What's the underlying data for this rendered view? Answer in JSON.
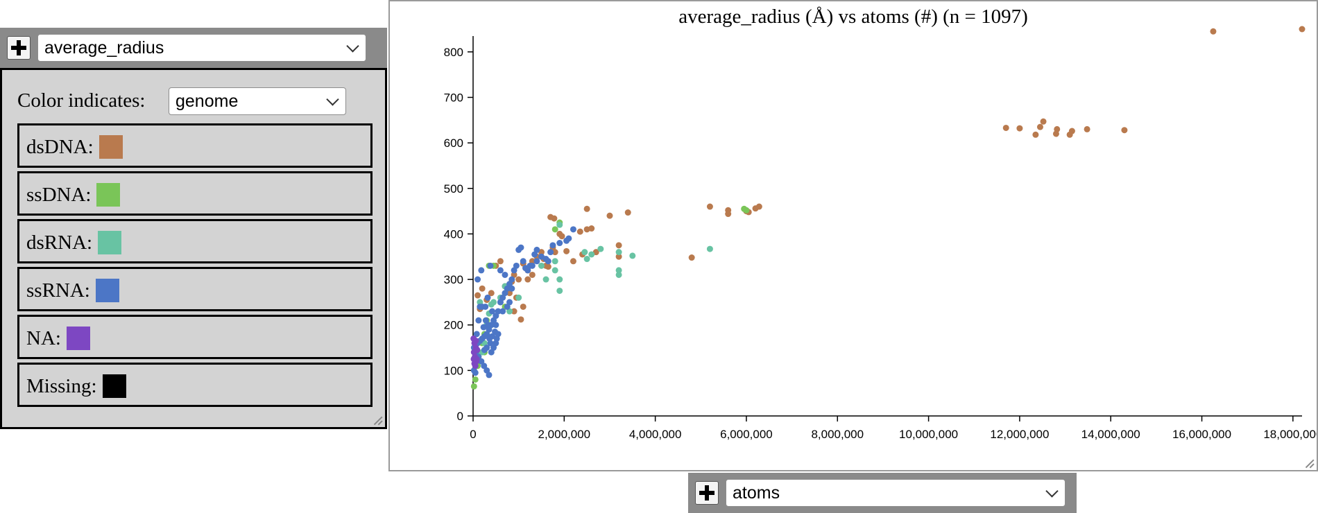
{
  "y_selector": {
    "value": "average_radius"
  },
  "x_selector": {
    "value": "atoms"
  },
  "legend": {
    "title": "Color indicates:",
    "select_value": "genome",
    "items": [
      {
        "label": "dsDNA:",
        "color": "#b97a4e"
      },
      {
        "label": "ssDNA:",
        "color": "#7ac558"
      },
      {
        "label": "dsRNA:",
        "color": "#68c3a3"
      },
      {
        "label": "ssRNA:",
        "color": "#4c76c6"
      },
      {
        "label": "NA:",
        "color": "#7d47c2"
      },
      {
        "label": "Missing:",
        "color": "#000000"
      }
    ]
  },
  "chart_data": {
    "type": "scatter",
    "title": "average_radius (Å) vs atoms (#) (n = 1097)",
    "xlabel": "",
    "ylabel": "",
    "xlim": [
      0,
      18200000
    ],
    "ylim": [
      0,
      850
    ],
    "x_ticks": [
      "0",
      "2,000,000",
      "4,000,000",
      "6,000,000",
      "8,000,000",
      "10,000,000",
      "12,000,000",
      "14,000,000",
      "16,000,000",
      "18,000,000"
    ],
    "y_ticks": [
      "0",
      "100",
      "200",
      "300",
      "400",
      "500",
      "600",
      "700",
      "800"
    ],
    "series": [
      {
        "name": "dsDNA",
        "color": "#b97a4e",
        "points": [
          [
            18200000,
            850
          ],
          [
            16250000,
            845
          ],
          [
            11700000,
            633
          ],
          [
            12000000,
            632
          ],
          [
            12350000,
            618
          ],
          [
            12450000,
            635
          ],
          [
            12520000,
            647
          ],
          [
            12800000,
            620
          ],
          [
            12820000,
            630
          ],
          [
            13100000,
            618
          ],
          [
            13150000,
            626
          ],
          [
            13480000,
            630
          ],
          [
            14300000,
            628
          ],
          [
            5200000,
            460
          ],
          [
            5600000,
            452
          ],
          [
            5600000,
            444
          ],
          [
            6000000,
            450
          ],
          [
            6050000,
            448
          ],
          [
            6200000,
            456
          ],
          [
            6280000,
            460
          ],
          [
            4800000,
            348
          ],
          [
            2500000,
            455
          ],
          [
            3000000,
            440
          ],
          [
            3400000,
            447
          ],
          [
            2350000,
            405
          ],
          [
            2500000,
            410
          ],
          [
            2600000,
            412
          ],
          [
            1700000,
            437
          ],
          [
            1780000,
            434
          ],
          [
            1900000,
            400
          ],
          [
            1950000,
            395
          ],
          [
            2050000,
            362
          ],
          [
            2200000,
            340
          ],
          [
            2400000,
            355
          ],
          [
            2700000,
            360
          ],
          [
            3200000,
            375
          ],
          [
            3200000,
            350
          ],
          [
            1400000,
            350
          ],
          [
            1500000,
            360
          ],
          [
            1550000,
            345
          ],
          [
            1200000,
            320
          ],
          [
            1300000,
            310
          ],
          [
            1600000,
            330
          ],
          [
            1650000,
            328
          ],
          [
            1000000,
            300
          ],
          [
            900000,
            310
          ],
          [
            850000,
            295
          ],
          [
            700000,
            285
          ],
          [
            800000,
            270
          ],
          [
            950000,
            260
          ],
          [
            1100000,
            240
          ],
          [
            1050000,
            212
          ],
          [
            900000,
            230
          ],
          [
            600000,
            340
          ],
          [
            500000,
            330
          ],
          [
            400000,
            270
          ],
          [
            300000,
            255
          ],
          [
            200000,
            280
          ],
          [
            100000,
            265
          ],
          [
            150000,
            235
          ],
          [
            1300000,
            340
          ],
          [
            1100000,
            335
          ],
          [
            1200000,
            300
          ],
          [
            1750000,
            370
          ],
          [
            1800000,
            360
          ]
        ]
      },
      {
        "name": "ssDNA",
        "color": "#7ac558",
        "points": [
          [
            5950000,
            455
          ],
          [
            6000000,
            452
          ],
          [
            1800000,
            410
          ],
          [
            1900000,
            425
          ],
          [
            350000,
            330
          ],
          [
            450000,
            330
          ],
          [
            300000,
            210
          ],
          [
            600000,
            250
          ],
          [
            250000,
            180
          ],
          [
            200000,
            160
          ],
          [
            150000,
            120
          ],
          [
            100000,
            110
          ],
          [
            50000,
            80
          ],
          [
            20000,
            65
          ],
          [
            250000,
            140
          ],
          [
            400000,
            200
          ],
          [
            700000,
            240
          ]
        ]
      },
      {
        "name": "dsRNA",
        "color": "#68c3a3",
        "points": [
          [
            5200000,
            367
          ],
          [
            3500000,
            352
          ],
          [
            3200000,
            360
          ],
          [
            3200000,
            320
          ],
          [
            3200000,
            310
          ],
          [
            2800000,
            367
          ],
          [
            2600000,
            355
          ],
          [
            2500000,
            345
          ],
          [
            2450000,
            360
          ],
          [
            1900000,
            300
          ],
          [
            1900000,
            275
          ],
          [
            1800000,
            340
          ],
          [
            1800000,
            320
          ],
          [
            1600000,
            300
          ],
          [
            1500000,
            330
          ],
          [
            700000,
            285
          ],
          [
            600000,
            260
          ],
          [
            450000,
            250
          ],
          [
            400000,
            245
          ],
          [
            350000,
            225
          ],
          [
            300000,
            200
          ],
          [
            250000,
            160
          ],
          [
            200000,
            140
          ],
          [
            100000,
            135
          ],
          [
            50000,
            150
          ],
          [
            150000,
            250
          ],
          [
            800000,
            230
          ],
          [
            1000000,
            260
          ],
          [
            1900000,
            420
          ]
        ]
      },
      {
        "name": "ssRNA",
        "color": "#4c76c6",
        "points": [
          [
            2200000,
            410
          ],
          [
            2050000,
            385
          ],
          [
            2100000,
            390
          ],
          [
            1900000,
            380
          ],
          [
            1750000,
            375
          ],
          [
            1700000,
            360
          ],
          [
            1650000,
            340
          ],
          [
            1600000,
            345
          ],
          [
            1500000,
            350
          ],
          [
            1400000,
            340
          ],
          [
            1300000,
            330
          ],
          [
            1200000,
            320
          ],
          [
            1100000,
            340
          ],
          [
            1050000,
            370
          ],
          [
            1000000,
            365
          ],
          [
            950000,
            330
          ],
          [
            900000,
            320
          ],
          [
            850000,
            300
          ],
          [
            800000,
            290
          ],
          [
            750000,
            280
          ],
          [
            700000,
            270
          ],
          [
            650000,
            260
          ],
          [
            600000,
            250
          ],
          [
            550000,
            230
          ],
          [
            500000,
            220
          ],
          [
            450000,
            210
          ],
          [
            400000,
            200
          ],
          [
            350000,
            190
          ],
          [
            300000,
            180
          ],
          [
            250000,
            175
          ],
          [
            200000,
            170
          ],
          [
            150000,
            165
          ],
          [
            100000,
            160
          ],
          [
            50000,
            155
          ],
          [
            20000,
            150
          ],
          [
            60000,
            140
          ],
          [
            120000,
            130
          ],
          [
            180000,
            120
          ],
          [
            240000,
            110
          ],
          [
            300000,
            100
          ],
          [
            350000,
            90
          ],
          [
            50000,
            95
          ],
          [
            20000,
            100
          ],
          [
            500000,
            160
          ],
          [
            520000,
            170
          ],
          [
            480000,
            185
          ],
          [
            420000,
            175
          ],
          [
            380000,
            160
          ],
          [
            360000,
            170
          ],
          [
            330000,
            200
          ],
          [
            280000,
            210
          ],
          [
            230000,
            195
          ],
          [
            270000,
            240
          ],
          [
            150000,
            240
          ],
          [
            100000,
            300
          ],
          [
            180000,
            320
          ],
          [
            380000,
            330
          ],
          [
            600000,
            320
          ],
          [
            700000,
            310
          ],
          [
            850000,
            280
          ],
          [
            650000,
            230
          ],
          [
            550000,
            180
          ],
          [
            450000,
            150
          ],
          [
            400000,
            140
          ],
          [
            300000,
            150
          ],
          [
            250000,
            145
          ],
          [
            1400000,
            365
          ],
          [
            1350000,
            355
          ],
          [
            1250000,
            330
          ],
          [
            1150000,
            325
          ],
          [
            800000,
            250
          ],
          [
            750000,
            240
          ],
          [
            420000,
            230
          ],
          [
            320000,
            260
          ],
          [
            200000,
            240
          ],
          [
            120000,
            210
          ],
          [
            80000,
            180
          ],
          [
            500000,
            200
          ]
        ]
      },
      {
        "name": "NA",
        "color": "#7d47c2",
        "points": [
          [
            10000,
            170
          ],
          [
            30000,
            160
          ],
          [
            60000,
            150
          ],
          [
            20000,
            140
          ],
          [
            40000,
            130
          ],
          [
            70000,
            120
          ],
          [
            30000,
            115
          ],
          [
            50000,
            110
          ],
          [
            80000,
            125
          ],
          [
            90000,
            145
          ],
          [
            15000,
            125
          ],
          [
            60000,
            165
          ]
        ]
      }
    ]
  }
}
